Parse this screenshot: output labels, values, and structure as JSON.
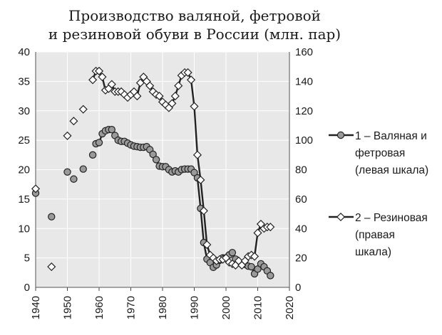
{
  "chart_data": {
    "type": "line",
    "title": [
      "Производство валяной, фетровой",
      "и резиновой обуви в России (млн. пар)"
    ],
    "xlabel": "",
    "ylabel": "",
    "x_ticks": [
      "1940",
      "1950",
      "1960",
      "1970",
      "1980",
      "1990",
      "2000",
      "2010",
      "2020"
    ],
    "xlim": [
      1940,
      2020
    ],
    "ylim_left": [
      0,
      40
    ],
    "ylim_right": [
      0,
      160
    ],
    "left_ticks": [
      "0",
      "5",
      "10",
      "15",
      "20",
      "25",
      "30",
      "35",
      "40"
    ],
    "right_ticks": [
      "0",
      "20",
      "40",
      "60",
      "80",
      "100",
      "120",
      "140",
      "160"
    ],
    "plot_background": "#e8e8e8",
    "grid": true,
    "legend_position": "right",
    "series": [
      {
        "name": "1 – Валяная и фетровая (левая шкала)",
        "legend_lines": [
          "1 – Валяная и",
          "фетровая",
          "(левая шкала)"
        ],
        "axis": "left",
        "marker": "circle",
        "marker_color": "#9a9a9a",
        "line_color": "#222222",
        "isolated": [
          [
            1940,
            16.0
          ],
          [
            1945,
            12.0
          ],
          [
            1950,
            19.6
          ],
          [
            1952,
            18.4
          ],
          [
            1955,
            20.1
          ],
          [
            1958,
            22.5
          ]
        ],
        "points": [
          [
            1959,
            24.4
          ],
          [
            1960,
            24.6
          ],
          [
            1961,
            26.1
          ],
          [
            1962,
            26.6
          ],
          [
            1963,
            26.8
          ],
          [
            1964,
            26.8
          ],
          [
            1965,
            25.8
          ],
          [
            1966,
            25.0
          ],
          [
            1967,
            24.8
          ],
          [
            1968,
            24.8
          ],
          [
            1969,
            24.5
          ],
          [
            1970,
            24.2
          ],
          [
            1971,
            24.0
          ],
          [
            1972,
            23.9
          ],
          [
            1973,
            23.8
          ],
          [
            1974,
            23.8
          ],
          [
            1975,
            23.9
          ],
          [
            1976,
            23.4
          ],
          [
            1977,
            22.6
          ],
          [
            1978,
            21.7
          ],
          [
            1979,
            20.6
          ],
          [
            1980,
            20.5
          ],
          [
            1981,
            20.5
          ],
          [
            1982,
            20.0
          ],
          [
            1983,
            19.6
          ],
          [
            1984,
            19.8
          ],
          [
            1985,
            19.6
          ],
          [
            1986,
            20.0
          ],
          [
            1987,
            20.1
          ],
          [
            1988,
            20.1
          ],
          [
            1989,
            20.1
          ],
          [
            1990,
            19.5
          ],
          [
            1991,
            18.6
          ],
          [
            1992,
            13.4
          ],
          [
            1993,
            7.6
          ],
          [
            1994,
            4.8
          ],
          [
            1995,
            4.2
          ],
          [
            1996,
            3.4
          ],
          [
            1997,
            3.8
          ],
          [
            1998,
            4.6
          ],
          [
            1999,
            5.0
          ],
          [
            2000,
            5.0
          ],
          [
            2001,
            5.5
          ],
          [
            2002,
            5.9
          ],
          [
            2003,
            4.8
          ],
          [
            2004,
            4.3
          ],
          [
            2005,
            3.9
          ],
          [
            2006,
            3.9
          ],
          [
            2007,
            3.6
          ],
          [
            2008,
            3.5
          ],
          [
            2009,
            2.3
          ],
          [
            2010,
            3.1
          ],
          [
            2011,
            4.0
          ],
          [
            2012,
            3.5
          ],
          [
            2013,
            2.8
          ],
          [
            2014,
            2.0
          ]
        ]
      },
      {
        "name": "2 – Резиновая (правая шкала)",
        "legend_lines": [
          "2 – Резиновая",
          "(правая",
          "шкала)"
        ],
        "axis": "right",
        "marker": "diamond",
        "marker_color": "#ffffff",
        "line_color": "#222222",
        "isolated": [
          [
            1940,
            67
          ],
          [
            1945,
            14
          ],
          [
            1950,
            103
          ],
          [
            1952,
            113
          ],
          [
            1955,
            121
          ]
        ],
        "points": [
          [
            1958,
            141
          ],
          [
            1959,
            147
          ],
          [
            1960,
            147
          ],
          [
            1961,
            143
          ],
          [
            1962,
            134
          ],
          [
            1963,
            135
          ],
          [
            1964,
            138
          ],
          [
            1965,
            133
          ],
          [
            1966,
            133
          ],
          [
            1967,
            133
          ],
          [
            1968,
            131
          ],
          [
            1969,
            129
          ],
          [
            1970,
            131
          ],
          [
            1971,
            133
          ],
          [
            1972,
            130
          ],
          [
            1973,
            139
          ],
          [
            1974,
            143
          ],
          [
            1975,
            140
          ],
          [
            1976,
            137
          ],
          [
            1977,
            133
          ],
          [
            1978,
            131
          ],
          [
            1979,
            130
          ],
          [
            1980,
            126
          ],
          [
            1981,
            124
          ],
          [
            1982,
            122
          ],
          [
            1983,
            125
          ],
          [
            1984,
            130
          ],
          [
            1985,
            137
          ],
          [
            1986,
            144
          ],
          [
            1987,
            146
          ],
          [
            1988,
            146
          ],
          [
            1989,
            141
          ],
          [
            1990,
            123
          ],
          [
            1991,
            90
          ],
          [
            1992,
            73
          ],
          [
            1993,
            52
          ],
          [
            1994,
            29
          ],
          [
            1995,
            22
          ],
          [
            1996,
            20
          ],
          [
            1997,
            18
          ],
          [
            1998,
            19
          ],
          [
            1999,
            19
          ],
          [
            2000,
            20
          ],
          [
            2001,
            17
          ],
          [
            2002,
            16
          ],
          [
            2003,
            15
          ],
          [
            2004,
            18
          ],
          [
            2005,
            15
          ],
          [
            2006,
            18
          ],
          [
            2007,
            21
          ],
          [
            2008,
            22
          ],
          [
            2009,
            21
          ],
          [
            2010,
            37
          ],
          [
            2011,
            43
          ],
          [
            2012,
            40
          ],
          [
            2013,
            41
          ],
          [
            2014,
            41
          ]
        ]
      }
    ]
  }
}
